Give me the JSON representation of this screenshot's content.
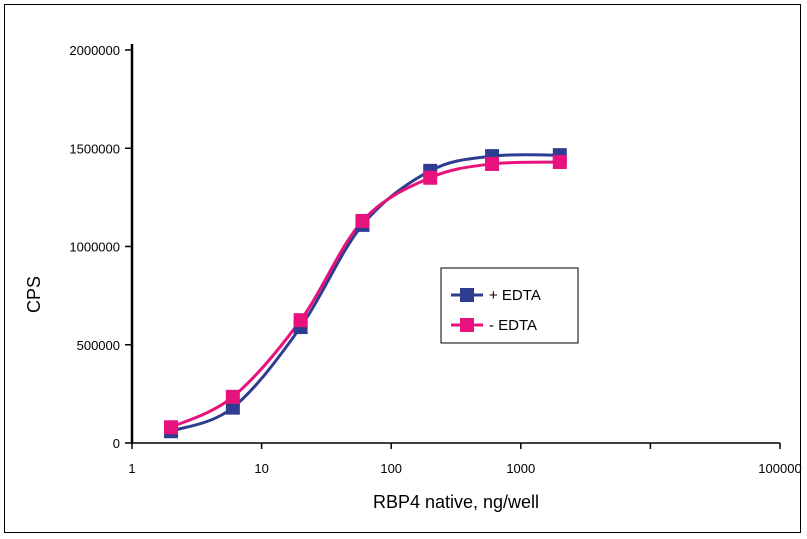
{
  "chart_data": {
    "type": "line",
    "title": "",
    "xlabel": "RBP4 native, ng/well",
    "ylabel": "CPS",
    "x_scale": "log",
    "xlim": [
      1,
      100000
    ],
    "ylim": [
      0,
      2000000
    ],
    "x_ticks": [
      1,
      10,
      100,
      1000,
      100000
    ],
    "x_tick_labels": [
      "1",
      "10",
      "100",
      "1000",
      "100000"
    ],
    "y_ticks": [
      0,
      500000,
      1000000,
      1500000,
      2000000
    ],
    "y_tick_labels": [
      "0",
      "500000",
      "1000000",
      "1500000",
      "2000000"
    ],
    "grid": false,
    "legend_position": "center-right",
    "series": [
      {
        "name": "+ EDTA",
        "color": "#2e3d8f",
        "x": [
          2,
          6,
          20,
          60,
          200,
          600,
          2000
        ],
        "y": [
          60000,
          180000,
          590000,
          1110000,
          1385000,
          1460000,
          1465000
        ]
      },
      {
        "name": "- EDTA",
        "color": "#e8127f",
        "x": [
          2,
          6,
          20,
          60,
          200,
          600,
          2000
        ],
        "y": [
          80000,
          235000,
          625000,
          1130000,
          1350000,
          1420000,
          1430000
        ]
      }
    ]
  }
}
